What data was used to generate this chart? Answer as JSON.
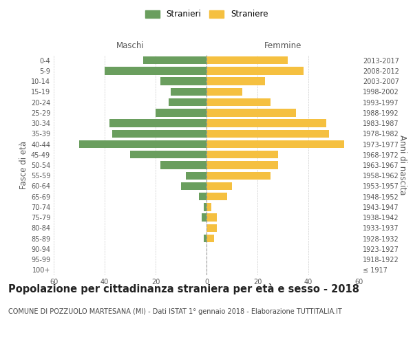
{
  "age_groups": [
    "100+",
    "95-99",
    "90-94",
    "85-89",
    "80-84",
    "75-79",
    "70-74",
    "65-69",
    "60-64",
    "55-59",
    "50-54",
    "45-49",
    "40-44",
    "35-39",
    "30-34",
    "25-29",
    "20-24",
    "15-19",
    "10-14",
    "5-9",
    "0-4"
  ],
  "birth_years": [
    "≤ 1917",
    "1918-1922",
    "1923-1927",
    "1928-1932",
    "1933-1937",
    "1938-1942",
    "1943-1947",
    "1948-1952",
    "1953-1957",
    "1958-1962",
    "1963-1967",
    "1968-1972",
    "1973-1977",
    "1978-1982",
    "1983-1987",
    "1988-1992",
    "1993-1997",
    "1998-2002",
    "2003-2007",
    "2008-2012",
    "2013-2017"
  ],
  "males": [
    0,
    0,
    0,
    1,
    0,
    2,
    1,
    3,
    10,
    8,
    18,
    30,
    50,
    37,
    38,
    20,
    15,
    14,
    18,
    40,
    25
  ],
  "females": [
    0,
    0,
    0,
    3,
    4,
    4,
    2,
    8,
    10,
    25,
    28,
    28,
    54,
    48,
    47,
    35,
    25,
    14,
    23,
    38,
    32
  ],
  "male_color": "#6a9e5e",
  "female_color": "#f5c040",
  "background_color": "#ffffff",
  "grid_color": "#cccccc",
  "title": "Popolazione per cittadinanza straniera per età e sesso - 2018",
  "subtitle": "COMUNE DI POZZUOLO MARTESANA (MI) - Dati ISTAT 1° gennaio 2018 - Elaborazione TUTTITALIA.IT",
  "xlabel_left": "Maschi",
  "xlabel_right": "Femmine",
  "ylabel_left": "Fasce di età",
  "ylabel_right": "Anni di nascita",
  "legend_male": "Stranieri",
  "legend_female": "Straniere",
  "xlim": 60,
  "title_fontsize": 10.5,
  "subtitle_fontsize": 7.0,
  "axis_label_fontsize": 8.5,
  "tick_fontsize": 7.0,
  "legend_fontsize": 8.5
}
